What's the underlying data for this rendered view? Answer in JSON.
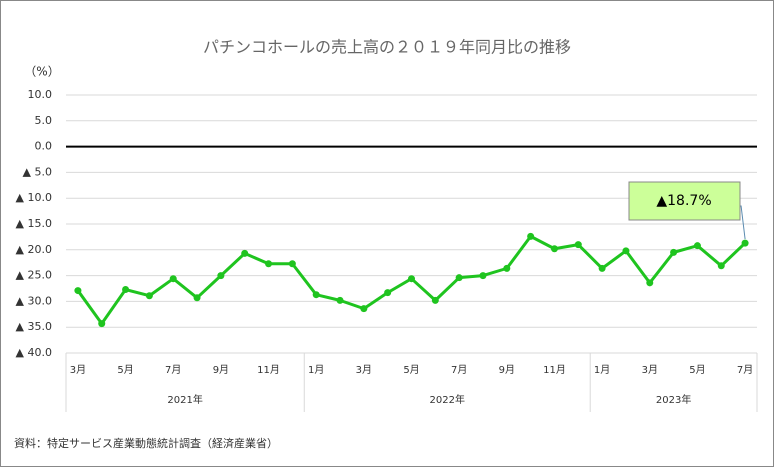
{
  "chart_data": {
    "type": "line",
    "title": "パチンコホールの売上高の２０１９年同月比の推移",
    "unit_label": "（%）",
    "source": "資料：特定サービス産業動態統計調査（経済産業省）",
    "groups": [
      {
        "name": "2021年",
        "categories": [
          "3月",
          null,
          "5月",
          null,
          "7月",
          null,
          "9月",
          null,
          "11月",
          null
        ]
      },
      {
        "name": "2022年",
        "categories": [
          "1月",
          null,
          "3月",
          null,
          "5月",
          null,
          "7月",
          null,
          "9月",
          null,
          "11月",
          null
        ]
      },
      {
        "name": "2023年",
        "categories": [
          "1月",
          null,
          "3月",
          null,
          "5月",
          null,
          "7月"
        ]
      }
    ],
    "series": [
      {
        "color": "#1fc41f",
        "values": [
          -27.9,
          -34.3,
          -27.7,
          -28.9,
          -25.6,
          -29.3,
          -25.0,
          -20.7,
          -22.7,
          -22.7,
          -28.7,
          -29.8,
          -31.4,
          -28.3,
          -25.6,
          -29.8,
          -25.4,
          -25.0,
          -23.6,
          -17.4,
          -19.8,
          -19.0,
          -23.6,
          -20.2,
          -26.4,
          -20.5,
          -19.2,
          -23.1,
          -18.7
        ]
      }
    ],
    "annotation": {
      "text": "▲18.7%",
      "color": "#ccff99"
    },
    "ylim": [
      -40,
      10
    ],
    "yticks": [
      {
        "value": -40,
        "label": "▲ 40.0"
      },
      {
        "value": -35,
        "label": "▲ 35.0"
      },
      {
        "value": -30,
        "label": "▲ 30.0"
      },
      {
        "value": -25,
        "label": "▲ 25.0"
      },
      {
        "value": -20,
        "label": "▲ 20.0"
      },
      {
        "value": -15,
        "label": "▲ 15.0"
      },
      {
        "value": -10,
        "label": "▲ 10.0"
      },
      {
        "value": -5,
        "label": "▲ 5.0"
      },
      {
        "value": 0,
        "label": "0.0"
      },
      {
        "value": 5,
        "label": "5.0"
      },
      {
        "value": 10,
        "label": "10.0"
      }
    ],
    "grid": true
  }
}
